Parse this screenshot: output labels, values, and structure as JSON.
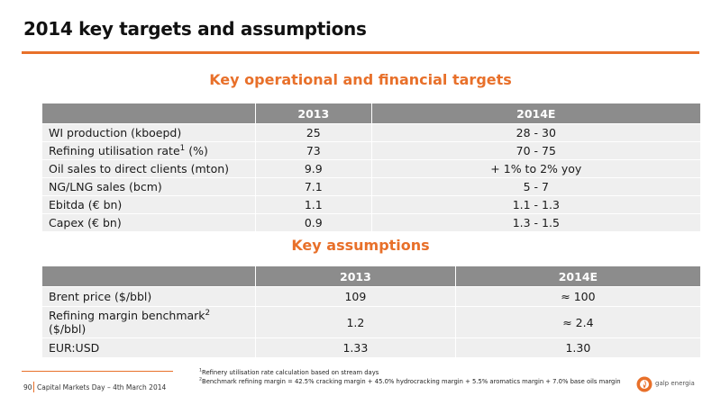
{
  "page": {
    "title": "2014 key targets and assumptions",
    "accent_color": "#e8702a",
    "header_color": "#8c8c8c",
    "row_color": "#efefef"
  },
  "operational": {
    "heading": "Key operational and financial targets",
    "columns": [
      "",
      "2013",
      "2014E"
    ],
    "rows": [
      {
        "label": "WI production (kboepd)",
        "label_sup": "",
        "label_suffix": "",
        "v2013": "25",
        "v2014": "28 - 30"
      },
      {
        "label": "Refining utilisation rate",
        "label_sup": "1",
        "label_suffix": " (%)",
        "v2013": "73",
        "v2014": "70 - 75"
      },
      {
        "label": "Oil sales to direct clients (mton)",
        "label_sup": "",
        "label_suffix": "",
        "v2013": "9.9",
        "v2014": "+ 1% to 2% yoy"
      },
      {
        "label": "NG/LNG sales (bcm)",
        "label_sup": "",
        "label_suffix": "",
        "v2013": "7.1",
        "v2014": "5 - 7"
      },
      {
        "label": "Ebitda (€ bn)",
        "label_sup": "",
        "label_suffix": "",
        "v2013": "1.1",
        "v2014": "1.1 - 1.3"
      },
      {
        "label": "Capex (€ bn)",
        "label_sup": "",
        "label_suffix": "",
        "v2013": "0.9",
        "v2014": "1.3 - 1.5"
      }
    ]
  },
  "assumptions": {
    "heading": "Key assumptions",
    "columns": [
      "",
      "2013",
      "2014E"
    ],
    "rows": [
      {
        "label": "Brent price ($/bbl)",
        "v2013": "109",
        "v2014": "≈ 100"
      },
      {
        "label": "Refining margin benchmark",
        "label_sup": "2",
        "label_line2": "($/bbl)",
        "v2013": "1.2",
        "v2014": "≈ 2.4"
      },
      {
        "label": "EUR:USD",
        "v2013": "1.33",
        "v2014": "1.30"
      }
    ]
  },
  "footer": {
    "page_number": "90",
    "event": "Capital Markets Day – 4th March 2014",
    "note1_marker": "1",
    "note1": "Refinery utilisation rate calculation based on stream days",
    "note2_marker": "2",
    "note2": "Benchmark refining margin = 42.5% cracking margin + 45.0% hydrocracking margin + 5.5% aromatics margin + 7.0% base oils margin",
    "logo_text": "galp energia",
    "logo_icon": "galp-flame-logo-icon"
  }
}
